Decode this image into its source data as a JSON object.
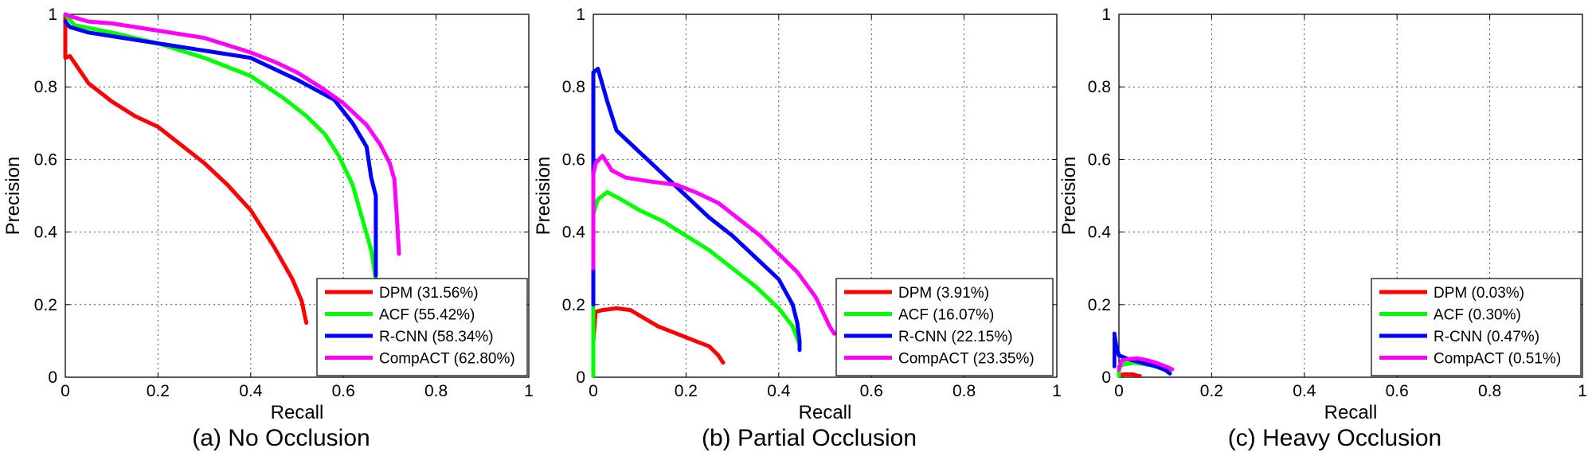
{
  "figure": {
    "panel_captions": [
      "(a) No Occlusion",
      "(b) Partial Occlusion",
      "(c) Heavy Occlusion"
    ]
  },
  "colors": {
    "DPM": "#ff0000",
    "ACF": "#00ff00",
    "R-CNN": "#0000ff",
    "CompACT": "#ff00ff"
  },
  "chart_data": [
    {
      "type": "line",
      "title": "",
      "caption": "(a) No Occlusion",
      "xlabel": "Recall",
      "ylabel": "Precision",
      "xlim": [
        0,
        1
      ],
      "ylim": [
        0,
        1
      ],
      "xticks": [
        "0",
        "0.2",
        "0.4",
        "0.6",
        "0.8",
        "1"
      ],
      "yticks": [
        "0",
        "0.2",
        "0.4",
        "0.6",
        "0.8",
        "1"
      ],
      "grid": true,
      "legend_position": "bottom-right",
      "series": [
        {
          "name": "DPM (31.56%)",
          "color": "#ff0000",
          "points": [
            [
              0,
              1
            ],
            [
              0,
              0.88
            ],
            [
              0.01,
              0.885
            ],
            [
              0.05,
              0.81
            ],
            [
              0.1,
              0.76
            ],
            [
              0.15,
              0.72
            ],
            [
              0.2,
              0.69
            ],
            [
              0.25,
              0.64
            ],
            [
              0.3,
              0.59
            ],
            [
              0.35,
              0.53
            ],
            [
              0.4,
              0.46
            ],
            [
              0.45,
              0.36
            ],
            [
              0.49,
              0.27
            ],
            [
              0.51,
              0.21
            ],
            [
              0.52,
              0.15
            ]
          ]
        },
        {
          "name": "ACF (55.42%)",
          "color": "#00ff00",
          "points": [
            [
              0,
              1
            ],
            [
              0.02,
              0.97
            ],
            [
              0.1,
              0.95
            ],
            [
              0.2,
              0.92
            ],
            [
              0.3,
              0.88
            ],
            [
              0.4,
              0.83
            ],
            [
              0.47,
              0.77
            ],
            [
              0.52,
              0.72
            ],
            [
              0.56,
              0.67
            ],
            [
              0.59,
              0.61
            ],
            [
              0.62,
              0.53
            ],
            [
              0.64,
              0.44
            ],
            [
              0.66,
              0.35
            ],
            [
              0.67,
              0.27
            ]
          ]
        },
        {
          "name": "R-CNN (58.34%)",
          "color": "#0000ff",
          "points": [
            [
              0,
              0.98
            ],
            [
              0.01,
              0.965
            ],
            [
              0.05,
              0.95
            ],
            [
              0.1,
              0.94
            ],
            [
              0.2,
              0.92
            ],
            [
              0.3,
              0.9
            ],
            [
              0.4,
              0.88
            ],
            [
              0.5,
              0.82
            ],
            [
              0.58,
              0.765
            ],
            [
              0.62,
              0.7
            ],
            [
              0.65,
              0.635
            ],
            [
              0.66,
              0.55
            ],
            [
              0.67,
              0.5
            ],
            [
              0.67,
              0.4
            ],
            [
              0.67,
              0.28
            ]
          ]
        },
        {
          "name": "CompACT (62.80%)",
          "color": "#ff00ff",
          "points": [
            [
              0,
              1
            ],
            [
              0.01,
              0.995
            ],
            [
              0.05,
              0.98
            ],
            [
              0.1,
              0.975
            ],
            [
              0.2,
              0.955
            ],
            [
              0.3,
              0.935
            ],
            [
              0.4,
              0.895
            ],
            [
              0.45,
              0.87
            ],
            [
              0.5,
              0.84
            ],
            [
              0.55,
              0.8
            ],
            [
              0.6,
              0.755
            ],
            [
              0.65,
              0.695
            ],
            [
              0.68,
              0.64
            ],
            [
              0.7,
              0.59
            ],
            [
              0.71,
              0.545
            ],
            [
              0.715,
              0.45
            ],
            [
              0.72,
              0.34
            ]
          ]
        }
      ]
    },
    {
      "type": "line",
      "title": "",
      "caption": "(b) Partial Occlusion",
      "xlabel": "Recall",
      "ylabel": "Precision",
      "xlim": [
        0,
        1
      ],
      "ylim": [
        0,
        1
      ],
      "xticks": [
        "0",
        "0.2",
        "0.4",
        "0.6",
        "0.8",
        "1"
      ],
      "yticks": [
        "0",
        "0.2",
        "0.4",
        "0.6",
        "0.8",
        "1"
      ],
      "grid": true,
      "legend_position": "bottom-right",
      "series": [
        {
          "name": "DPM (3.91%)",
          "color": "#ff0000",
          "points": [
            [
              0,
              0
            ],
            [
              0,
              0.1
            ],
            [
              0.005,
              0.18
            ],
            [
              0.02,
              0.185
            ],
            [
              0.05,
              0.19
            ],
            [
              0.08,
              0.185
            ],
            [
              0.1,
              0.17
            ],
            [
              0.14,
              0.14
            ],
            [
              0.18,
              0.12
            ],
            [
              0.22,
              0.1
            ],
            [
              0.25,
              0.085
            ],
            [
              0.27,
              0.06
            ],
            [
              0.28,
              0.04
            ]
          ]
        },
        {
          "name": "ACF (16.07%)",
          "color": "#00ff00",
          "points": [
            [
              0,
              0
            ],
            [
              0,
              0.45
            ],
            [
              0.01,
              0.49
            ],
            [
              0.03,
              0.51
            ],
            [
              0.06,
              0.49
            ],
            [
              0.1,
              0.46
            ],
            [
              0.15,
              0.43
            ],
            [
              0.2,
              0.39
            ],
            [
              0.25,
              0.35
            ],
            [
              0.3,
              0.3
            ],
            [
              0.35,
              0.25
            ],
            [
              0.4,
              0.19
            ],
            [
              0.43,
              0.14
            ],
            [
              0.445,
              0.09
            ]
          ]
        },
        {
          "name": "R-CNN (22.15%)",
          "color": "#0000ff",
          "points": [
            [
              0,
              0.2
            ],
            [
              0,
              0.84
            ],
            [
              0.01,
              0.85
            ],
            [
              0.03,
              0.76
            ],
            [
              0.05,
              0.68
            ],
            [
              0.1,
              0.62
            ],
            [
              0.15,
              0.56
            ],
            [
              0.2,
              0.5
            ],
            [
              0.25,
              0.44
            ],
            [
              0.3,
              0.39
            ],
            [
              0.35,
              0.33
            ],
            [
              0.4,
              0.27
            ],
            [
              0.43,
              0.2
            ],
            [
              0.44,
              0.15
            ],
            [
              0.445,
              0.1
            ],
            [
              0.445,
              0.075
            ]
          ]
        },
        {
          "name": "CompACT (23.35%)",
          "color": "#ff00ff",
          "points": [
            [
              0,
              0.3
            ],
            [
              0,
              0.56
            ],
            [
              0.005,
              0.59
            ],
            [
              0.02,
              0.61
            ],
            [
              0.04,
              0.57
            ],
            [
              0.07,
              0.55
            ],
            [
              0.12,
              0.54
            ],
            [
              0.18,
              0.53
            ],
            [
              0.22,
              0.51
            ],
            [
              0.27,
              0.48
            ],
            [
              0.32,
              0.43
            ],
            [
              0.36,
              0.39
            ],
            [
              0.4,
              0.34
            ],
            [
              0.44,
              0.29
            ],
            [
              0.48,
              0.22
            ],
            [
              0.51,
              0.14
            ],
            [
              0.52,
              0.12
            ]
          ]
        }
      ]
    },
    {
      "type": "line",
      "title": "",
      "caption": "(c) Heavy Occlusion",
      "xlabel": "Recall",
      "ylabel": "Precision",
      "xlim": [
        0,
        1
      ],
      "ylim": [
        0,
        1
      ],
      "xticks": [
        "0",
        "0.2",
        "0.4",
        "0.6",
        "0.8",
        "1"
      ],
      "yticks": [
        "0",
        "0.2",
        "0.4",
        "0.6",
        "0.8",
        "1"
      ],
      "grid": true,
      "legend_position": "bottom-right",
      "series": [
        {
          "name": "DPM (0.03%)",
          "color": "#ff0000",
          "points": [
            [
              0,
              0
            ],
            [
              0,
              0.005
            ],
            [
              0.01,
              0.008
            ],
            [
              0.03,
              0.008
            ],
            [
              0.04,
              0.004
            ],
            [
              0.045,
              0.003
            ]
          ]
        },
        {
          "name": "ACF (0.30%)",
          "color": "#00ff00",
          "points": [
            [
              0,
              0
            ],
            [
              0,
              0.03
            ],
            [
              0.01,
              0.035
            ],
            [
              0.03,
              0.04
            ],
            [
              0.05,
              0.037
            ],
            [
              0.07,
              0.033
            ],
            [
              0.09,
              0.025
            ],
            [
              0.105,
              0.018
            ],
            [
              0.11,
              0.015
            ]
          ]
        },
        {
          "name": "R-CNN (0.47%)",
          "color": "#0000ff",
          "points": [
            [
              -0.01,
              0.03
            ],
            [
              -0.01,
              0.12
            ],
            [
              -0.005,
              0.08
            ],
            [
              0,
              0.06
            ],
            [
              0.02,
              0.05
            ],
            [
              0.05,
              0.04
            ],
            [
              0.08,
              0.03
            ],
            [
              0.1,
              0.02
            ],
            [
              0.11,
              0.01
            ]
          ]
        },
        {
          "name": "CompACT (0.51%)",
          "color": "#ff00ff",
          "points": [
            [
              0,
              0.02
            ],
            [
              0.005,
              0.045
            ],
            [
              0.02,
              0.05
            ],
            [
              0.04,
              0.052
            ],
            [
              0.06,
              0.047
            ],
            [
              0.08,
              0.04
            ],
            [
              0.1,
              0.03
            ],
            [
              0.115,
              0.022
            ]
          ]
        }
      ]
    }
  ]
}
